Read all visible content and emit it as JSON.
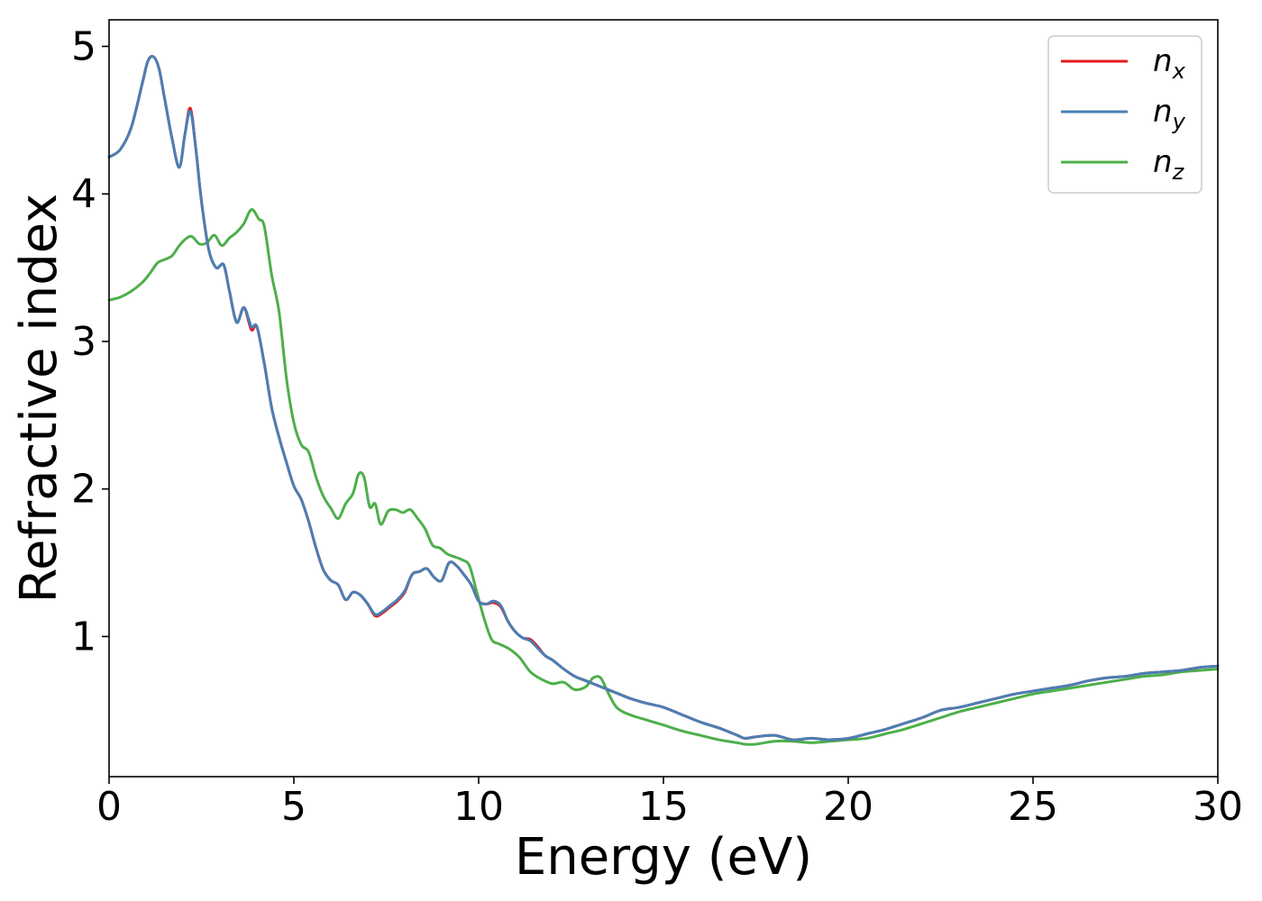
{
  "chart_data": {
    "type": "line",
    "title": "",
    "xlabel": "Energy (eV)",
    "ylabel": "Refractive index",
    "xlim": [
      0,
      30
    ],
    "ylim": [
      0.05,
      5.18
    ],
    "xticks": [
      0,
      5,
      10,
      15,
      20,
      25,
      30
    ],
    "yticks": [
      1,
      2,
      3,
      4,
      5
    ],
    "grid": false,
    "legend_position": "top-right",
    "series": [
      {
        "name": "n",
        "subscript": "x",
        "color": "#e41a1c",
        "x": [
          0,
          0.3,
          0.6,
          0.9,
          1.05,
          1.2,
          1.35,
          1.5,
          1.7,
          1.9,
          2.05,
          2.2,
          2.35,
          2.5,
          2.7,
          2.9,
          3.1,
          3.25,
          3.45,
          3.65,
          3.85,
          4.0,
          4.2,
          4.4,
          4.6,
          4.8,
          5.0,
          5.2,
          5.4,
          5.6,
          5.8,
          6.0,
          6.2,
          6.4,
          6.6,
          6.8,
          7.0,
          7.2,
          7.4,
          7.6,
          7.8,
          8.0,
          8.2,
          8.4,
          8.6,
          8.8,
          9.0,
          9.2,
          9.4,
          9.6,
          9.8,
          10.0,
          10.2,
          10.4,
          10.6,
          10.8,
          11.0,
          11.2,
          11.4,
          11.6,
          11.8,
          12.0,
          12.3,
          12.6,
          12.9,
          13.2,
          13.5,
          13.8,
          14.1,
          14.5,
          15.0,
          15.5,
          16.0,
          16.5,
          17.0,
          17.2,
          17.5,
          18.0,
          18.5,
          19.0,
          19.5,
          20.0,
          20.5,
          21.0,
          21.5,
          22.0,
          22.5,
          23.0,
          23.5,
          24.0,
          24.5,
          25.0,
          25.5,
          26.0,
          26.5,
          27.0,
          27.5,
          28.0,
          28.5,
          29.0,
          29.5,
          30.0
        ],
        "y": [
          4.25,
          4.3,
          4.45,
          4.75,
          4.9,
          4.93,
          4.85,
          4.65,
          4.38,
          4.18,
          4.4,
          4.58,
          4.3,
          3.95,
          3.62,
          3.5,
          3.52,
          3.35,
          3.13,
          3.23,
          3.08,
          3.1,
          2.85,
          2.55,
          2.35,
          2.18,
          2.02,
          1.93,
          1.78,
          1.6,
          1.45,
          1.38,
          1.35,
          1.25,
          1.3,
          1.28,
          1.22,
          1.14,
          1.16,
          1.2,
          1.24,
          1.3,
          1.42,
          1.44,
          1.46,
          1.4,
          1.38,
          1.5,
          1.48,
          1.42,
          1.35,
          1.24,
          1.22,
          1.23,
          1.2,
          1.1,
          1.03,
          0.99,
          0.98,
          0.93,
          0.87,
          0.84,
          0.78,
          0.73,
          0.7,
          0.67,
          0.64,
          0.61,
          0.58,
          0.55,
          0.52,
          0.47,
          0.42,
          0.38,
          0.33,
          0.31,
          0.32,
          0.33,
          0.3,
          0.31,
          0.3,
          0.31,
          0.34,
          0.37,
          0.41,
          0.45,
          0.5,
          0.52,
          0.55,
          0.58,
          0.61,
          0.63,
          0.65,
          0.67,
          0.7,
          0.72,
          0.73,
          0.75,
          0.76,
          0.77,
          0.79,
          0.8
        ]
      },
      {
        "name": "n",
        "subscript": "y",
        "color": "#4a7fb5",
        "x": [
          0,
          0.3,
          0.6,
          0.9,
          1.05,
          1.2,
          1.35,
          1.5,
          1.7,
          1.9,
          2.05,
          2.2,
          2.35,
          2.5,
          2.7,
          2.9,
          3.1,
          3.25,
          3.45,
          3.65,
          3.85,
          4.0,
          4.2,
          4.4,
          4.6,
          4.8,
          5.0,
          5.2,
          5.4,
          5.6,
          5.8,
          6.0,
          6.2,
          6.4,
          6.6,
          6.8,
          7.0,
          7.2,
          7.4,
          7.6,
          7.8,
          8.0,
          8.2,
          8.4,
          8.6,
          8.8,
          9.0,
          9.2,
          9.4,
          9.6,
          9.8,
          10.0,
          10.2,
          10.4,
          10.6,
          10.8,
          11.0,
          11.2,
          11.4,
          11.6,
          11.8,
          12.0,
          12.3,
          12.6,
          12.9,
          13.2,
          13.5,
          13.8,
          14.1,
          14.5,
          15.0,
          15.5,
          16.0,
          16.5,
          17.0,
          17.2,
          17.5,
          18.0,
          18.5,
          19.0,
          19.5,
          20.0,
          20.5,
          21.0,
          21.5,
          22.0,
          22.5,
          23.0,
          23.5,
          24.0,
          24.5,
          25.0,
          25.5,
          26.0,
          26.5,
          27.0,
          27.5,
          28.0,
          28.5,
          29.0,
          29.5,
          30.0
        ],
        "y": [
          4.25,
          4.3,
          4.45,
          4.75,
          4.9,
          4.93,
          4.85,
          4.65,
          4.38,
          4.18,
          4.4,
          4.56,
          4.3,
          3.95,
          3.62,
          3.5,
          3.52,
          3.35,
          3.13,
          3.23,
          3.1,
          3.1,
          2.85,
          2.55,
          2.35,
          2.18,
          2.02,
          1.93,
          1.78,
          1.6,
          1.45,
          1.38,
          1.35,
          1.25,
          1.3,
          1.28,
          1.22,
          1.15,
          1.17,
          1.21,
          1.25,
          1.31,
          1.42,
          1.44,
          1.46,
          1.4,
          1.38,
          1.5,
          1.48,
          1.42,
          1.35,
          1.24,
          1.22,
          1.24,
          1.21,
          1.1,
          1.03,
          0.99,
          0.97,
          0.92,
          0.87,
          0.84,
          0.78,
          0.73,
          0.7,
          0.67,
          0.64,
          0.61,
          0.58,
          0.55,
          0.52,
          0.47,
          0.42,
          0.38,
          0.33,
          0.31,
          0.32,
          0.33,
          0.3,
          0.31,
          0.3,
          0.31,
          0.34,
          0.37,
          0.41,
          0.45,
          0.5,
          0.52,
          0.55,
          0.58,
          0.61,
          0.63,
          0.65,
          0.67,
          0.7,
          0.72,
          0.73,
          0.75,
          0.76,
          0.77,
          0.79,
          0.8
        ]
      },
      {
        "name": "n",
        "subscript": "z",
        "color": "#4daf4a",
        "x": [
          0,
          0.3,
          0.6,
          0.9,
          1.1,
          1.3,
          1.45,
          1.7,
          1.9,
          2.1,
          2.25,
          2.45,
          2.65,
          2.85,
          3.05,
          3.25,
          3.45,
          3.65,
          3.8,
          3.9,
          4.05,
          4.2,
          4.4,
          4.6,
          4.8,
          5.0,
          5.2,
          5.4,
          5.6,
          5.8,
          6.0,
          6.2,
          6.4,
          6.6,
          6.75,
          6.9,
          7.05,
          7.2,
          7.35,
          7.55,
          7.75,
          7.95,
          8.15,
          8.35,
          8.55,
          8.75,
          8.95,
          9.15,
          9.35,
          9.55,
          9.75,
          9.95,
          10.15,
          10.35,
          10.55,
          10.8,
          11.1,
          11.4,
          11.7,
          12.0,
          12.3,
          12.6,
          12.9,
          13.1,
          13.3,
          13.5,
          13.7,
          13.9,
          14.2,
          14.6,
          15.0,
          15.5,
          16.0,
          16.5,
          17.0,
          17.2,
          17.5,
          18.0,
          18.5,
          19.0,
          19.5,
          20.0,
          20.5,
          21.0,
          21.5,
          22.0,
          22.5,
          23.0,
          23.5,
          24.0,
          24.5,
          25.0,
          25.5,
          26.0,
          26.5,
          27.0,
          27.5,
          28.0,
          28.5,
          29.0,
          29.5,
          30.0
        ],
        "y": [
          3.28,
          3.3,
          3.34,
          3.4,
          3.46,
          3.53,
          3.55,
          3.58,
          3.65,
          3.7,
          3.71,
          3.66,
          3.67,
          3.72,
          3.65,
          3.7,
          3.74,
          3.8,
          3.88,
          3.89,
          3.83,
          3.78,
          3.45,
          3.2,
          2.75,
          2.45,
          2.3,
          2.25,
          2.08,
          1.95,
          1.87,
          1.8,
          1.9,
          1.97,
          2.1,
          2.08,
          1.88,
          1.9,
          1.76,
          1.85,
          1.86,
          1.84,
          1.86,
          1.8,
          1.73,
          1.62,
          1.6,
          1.56,
          1.54,
          1.52,
          1.48,
          1.3,
          1.12,
          0.98,
          0.95,
          0.92,
          0.86,
          0.76,
          0.71,
          0.68,
          0.69,
          0.64,
          0.66,
          0.72,
          0.72,
          0.62,
          0.53,
          0.49,
          0.46,
          0.43,
          0.4,
          0.36,
          0.33,
          0.3,
          0.28,
          0.27,
          0.27,
          0.29,
          0.29,
          0.28,
          0.29,
          0.3,
          0.31,
          0.34,
          0.37,
          0.41,
          0.45,
          0.49,
          0.52,
          0.55,
          0.58,
          0.61,
          0.63,
          0.65,
          0.67,
          0.69,
          0.71,
          0.73,
          0.74,
          0.76,
          0.77,
          0.78
        ]
      }
    ]
  }
}
